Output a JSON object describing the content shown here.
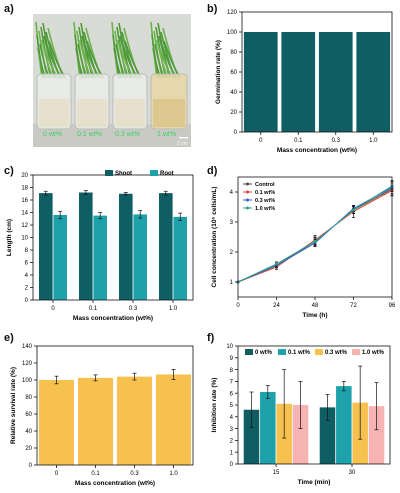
{
  "panels": {
    "a": "a)",
    "b": "b)",
    "c": "c)",
    "d": "d)",
    "e": "e)",
    "f": "f)"
  },
  "photo": {
    "labels": [
      "0 wt%",
      "0.1 wt%",
      "0.3 wt%",
      "1 wt%"
    ],
    "scale_bar": "2 cm"
  },
  "colors": {
    "dark_teal": "#0f5e63",
    "teal": "#1da2ab",
    "yellow": "#f6c14f",
    "pink": "#f7b3b1",
    "control": "#4a4a4a",
    "red": "#e0472e",
    "blue": "#2e62c8",
    "green": "#2aa08a"
  },
  "chart_data": [
    {
      "id": "b",
      "type": "bar",
      "categories": [
        "0",
        "0.1",
        "0.3",
        "1.0"
      ],
      "values": [
        100,
        100,
        100,
        100
      ],
      "xlabel": "Mass concentration (wt%)",
      "ylabel": "Germination rate (%)",
      "ylim": [
        0,
        120
      ],
      "yticks": [
        0,
        20,
        40,
        60,
        80,
        100,
        120
      ]
    },
    {
      "id": "c",
      "type": "bar",
      "categories": [
        "0",
        "0.1",
        "0.3",
        "1.0"
      ],
      "series": [
        {
          "name": "Shoot",
          "values": [
            17.1,
            17.2,
            17.0,
            17.1
          ],
          "errors": [
            0.3,
            0.3,
            0.2,
            0.3
          ]
        },
        {
          "name": "Root",
          "values": [
            13.6,
            13.5,
            13.7,
            13.3
          ],
          "errors": [
            0.6,
            0.5,
            0.6,
            0.6
          ]
        }
      ],
      "xlabel": "Mass concentration (wt%)",
      "ylabel": "Length (cm)",
      "ylim": [
        0,
        20
      ],
      "yticks": [
        0,
        2,
        4,
        6,
        8,
        10,
        12,
        14,
        16,
        18,
        20
      ],
      "legend": "top"
    },
    {
      "id": "d",
      "type": "line",
      "x": [
        0,
        24,
        48,
        72,
        96
      ],
      "series": [
        {
          "name": "Control",
          "values": [
            1.0,
            1.55,
            2.35,
            3.4,
            4.1
          ],
          "errors": [
            0.02,
            0.08,
            0.15,
            0.12,
            0.2
          ]
        },
        {
          "name": "0.1 wt%",
          "values": [
            1.0,
            1.5,
            2.4,
            3.35,
            4.05
          ],
          "errors": [
            0.02,
            0.08,
            0.15,
            0.2,
            0.18
          ]
        },
        {
          "name": "0.3 wt%",
          "values": [
            1.0,
            1.55,
            2.3,
            3.45,
            4.15
          ],
          "errors": [
            0.02,
            0.07,
            0.12,
            0.1,
            0.2
          ]
        },
        {
          "name": "1.0 wt%",
          "values": [
            1.0,
            1.6,
            2.35,
            3.4,
            4.2
          ],
          "errors": [
            0.02,
            0.07,
            0.12,
            0.12,
            0.18
          ]
        }
      ],
      "xlabel": "Time (h)",
      "ylabel": "Cell concentration (10⁵ cells/mL)",
      "xlim": [
        0,
        96
      ],
      "ylim": [
        0.5,
        4.5
      ],
      "xticks": [
        0,
        24,
        48,
        72,
        96
      ],
      "yticks": [
        1,
        2,
        3,
        4
      ],
      "legend": "top-left"
    },
    {
      "id": "e",
      "type": "bar",
      "categories": [
        "0",
        "0.1",
        "0.3",
        "1.0"
      ],
      "values": [
        100,
        102.5,
        104,
        106.5
      ],
      "errors": [
        4.5,
        3.5,
        4,
        6
      ],
      "xlabel": "Mass concentration (wt%)",
      "ylabel": "Relative survival rate (%)",
      "ylim": [
        0,
        140
      ],
      "yticks": [
        0,
        20,
        40,
        60,
        80,
        100,
        120,
        140
      ]
    },
    {
      "id": "f",
      "type": "bar",
      "categories": [
        "15",
        "30"
      ],
      "series": [
        {
          "name": "0 wt%",
          "values": [
            4.6,
            4.8
          ],
          "errors": [
            1.5,
            1.1
          ]
        },
        {
          "name": "0.1 wt%",
          "values": [
            6.1,
            6.6
          ],
          "errors": [
            0.55,
            0.4
          ]
        },
        {
          "name": "0.3 wt%",
          "values": [
            5.1,
            5.2
          ],
          "errors": [
            2.9,
            3.1
          ]
        },
        {
          "name": "1.0 wt%",
          "values": [
            5.0,
            4.9
          ],
          "errors": [
            2.0,
            2.0
          ]
        }
      ],
      "xlabel": "Time (min)",
      "ylabel": "Inhibition rate (%)",
      "ylim": [
        0,
        10
      ],
      "yticks": [
        0,
        1,
        2,
        3,
        4,
        5,
        6,
        7,
        8,
        9,
        10
      ],
      "legend": "top"
    }
  ]
}
